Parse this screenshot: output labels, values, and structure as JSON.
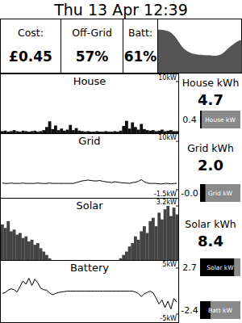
{
  "header": {
    "title": "Thu 13 Apr 12:39"
  },
  "summary": [
    {
      "label": "Cost:",
      "value": "£0.45"
    },
    {
      "label": "Off-Grid",
      "value": "57%"
    },
    {
      "label": "Batt:",
      "value": "61%"
    }
  ],
  "chart_data": [
    {
      "type": "area",
      "color": "#555555",
      "ylim": [
        0,
        100
      ],
      "tick_labels": false,
      "values": [
        80,
        80,
        79,
        78,
        76,
        72,
        66,
        58,
        50,
        44,
        40,
        37,
        35,
        34,
        33,
        33,
        32,
        32,
        32,
        31,
        31,
        32,
        34,
        38,
        43,
        48,
        52,
        56,
        59,
        61
      ]
    },
    {
      "type": "bar",
      "title": "House",
      "color": "#111111",
      "ylim": [
        0,
        10
      ],
      "yticks": [
        {
          "value": 10,
          "label": "10kW"
        }
      ],
      "values": [
        0.4,
        0.5,
        0.3,
        0.4,
        0.6,
        0.4,
        0.3,
        0.5,
        0.4,
        0.3,
        0.4,
        0.5,
        0.3,
        0.4,
        0.6,
        1.2,
        2.3,
        0.8,
        1.5,
        0.6,
        0.9,
        0.5,
        0.7,
        1.6,
        0.6,
        1.0,
        0.5,
        0.4,
        0.3,
        0.4,
        0.3,
        0.3,
        0.4,
        0.3,
        0.3,
        0.4,
        0.3,
        0.3,
        0.4,
        0.3,
        0.5,
        1.4,
        2.4,
        0.9,
        2.1,
        1.2,
        0.7,
        1.8,
        0.8,
        0.6,
        0.5,
        0.6,
        0.4,
        0.5,
        0.7,
        0.4,
        0.5,
        0.6,
        0.4,
        0.4
      ]
    },
    {
      "type": "line",
      "title": "Grid",
      "color": "#000000",
      "ylim": [
        -1.5,
        10
      ],
      "yticks": [
        {
          "value": 10,
          "label": "10kW"
        },
        {
          "value": -1.5,
          "label": "-1.5kW"
        }
      ],
      "values": [
        0.1,
        0,
        0,
        0.1,
        0,
        0,
        0,
        0.1,
        0,
        0,
        0,
        0,
        0.1,
        0,
        0,
        0,
        0.1,
        0,
        0,
        0,
        0,
        0,
        0,
        0,
        0,
        0.2,
        0.4,
        0.6,
        0.7,
        0.8,
        0.7,
        0.6,
        0.6,
        0.7,
        0.5,
        0.4,
        0.3,
        0.2,
        0.4,
        0.3,
        0.2,
        0.1,
        0.1,
        0,
        0.2,
        0.3,
        0.5,
        0.9,
        0.4,
        0.1,
        0,
        0,
        0,
        -0.1,
        -0.1,
        0,
        0,
        -0.1,
        0,
        0
      ]
    },
    {
      "type": "bar",
      "title": "Solar",
      "color": "#444444",
      "ylim": [
        0,
        3.2
      ],
      "yticks": [
        {
          "value": 3.2,
          "label": "3.2kW"
        }
      ],
      "values": [
        2.1,
        1.9,
        2.3,
        1.7,
        1.8,
        1.5,
        1.6,
        1.3,
        1.4,
        1.1,
        1.2,
        0.9,
        1.0,
        0.7,
        0.5,
        0.3,
        0.1,
        0,
        0,
        0,
        0,
        0,
        0,
        0,
        0,
        0,
        0,
        0,
        0,
        0,
        0,
        0,
        0,
        0,
        0,
        0,
        0,
        0,
        0,
        0,
        0.1,
        0.3,
        0.5,
        0.8,
        1.0,
        1.4,
        1.2,
        1.7,
        2.0,
        1.6,
        2.3,
        2.5,
        2.0,
        2.8,
        2.4,
        3.0,
        3.2,
        2.6,
        3.1,
        2.7
      ]
    },
    {
      "type": "line",
      "title": "Battery",
      "color": "#000000",
      "ylim": [
        -5,
        5
      ],
      "yticks": [
        {
          "value": 5,
          "label": "5kW"
        },
        {
          "value": -5,
          "label": "-5kW"
        }
      ],
      "values": [
        -0.5,
        -0.3,
        0.2,
        0.5,
        0.3,
        -0.2,
        1.0,
        2.2,
        1.5,
        2.8,
        1.2,
        2.6,
        1.8,
        0.6,
        0.3,
        0.2,
        -0.4,
        -0.8,
        -0.5,
        -0.3,
        -0.2,
        -0.1,
        0,
        0,
        0,
        0,
        0,
        0,
        0,
        0,
        0,
        0,
        0,
        0,
        0,
        0,
        0,
        0,
        0,
        0,
        0,
        0,
        0,
        0,
        0,
        -0.2,
        -0.5,
        -1.2,
        -0.6,
        -0.3,
        0,
        -0.4,
        -1.5,
        -2.8,
        -1.9,
        -3.6,
        -2.2,
        -3.9,
        -1.6,
        -2.4
      ]
    }
  ],
  "panel": [
    {
      "title": "House kWh",
      "kwh": "4.7",
      "now": {
        "value": 0.4,
        "label": "0.4"
      },
      "gauge": "House kW"
    },
    {
      "title": "Grid kWh",
      "kwh": "2.0",
      "now": {
        "value": -0.0,
        "label": "-0.0"
      },
      "gauge": "Grid kW"
    },
    {
      "title": "Solar kWh",
      "kwh": "8.4",
      "now": {
        "value": 2.7,
        "label": "2.7"
      },
      "gauge": "Solar kW"
    },
    {
      "now": {
        "value": -2.4,
        "label": "-2.4"
      },
      "gauge": "Batt kW"
    }
  ]
}
